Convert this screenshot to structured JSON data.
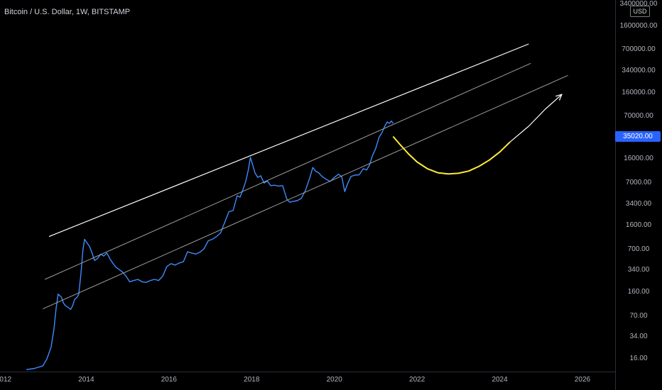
{
  "header": {
    "title": "Bitcoin / U.S. Dollar, 1W, BITSTAMP",
    "currency_button": "USD"
  },
  "price_badge": {
    "label": "35020.00",
    "color": "#2962ff"
  },
  "colors": {
    "price_line": "#3d8bfd",
    "channel_top": "#ffffff",
    "channel_mid": "#9e9e9e",
    "channel_low": "#9e9e9e",
    "projection": "#ffeb3b",
    "projection_arrow": "#ffffff"
  },
  "chart_data": {
    "type": "line",
    "title": "Bitcoin / U.S. Dollar, 1W, BITSTAMP",
    "y_scale": "log",
    "ylim": [
      11,
      4200000
    ],
    "xlim": [
      2012.0,
      2027.0
    ],
    "x_ticks": [
      "2012",
      "2014",
      "2016",
      "2018",
      "2020",
      "2022",
      "2024",
      "2026"
    ],
    "x_tick_values": [
      2012,
      2014,
      2016,
      2018,
      2020,
      2022,
      2024,
      2026
    ],
    "y_tick_labels": [
      "3400000.00",
      "1600000.00",
      "700000.00",
      "340000.00",
      "160000.00",
      "70000.00",
      "35020.00",
      "16000.00",
      "7000.00",
      "3400.00",
      "1600.00",
      "700.00",
      "340.00",
      "160.00",
      "70.00",
      "34.00",
      "16.00"
    ],
    "y_tick_values": [
      3400000,
      1600000,
      700000,
      340000,
      160000,
      70000,
      35020,
      16000,
      7000,
      3400,
      1600,
      700,
      340,
      160,
      70,
      34,
      16
    ],
    "series": [
      {
        "x": [
          2012.55,
          2012.75,
          2012.95,
          2013.05,
          2013.15,
          2013.22,
          2013.27,
          2013.32,
          2013.4,
          2013.45,
          2013.5,
          2013.56,
          2013.62,
          2013.67,
          2013.72,
          2013.78,
          2013.82,
          2013.87,
          2013.92,
          2013.96,
          2014.02,
          2014.08,
          2014.13,
          2014.2,
          2014.28,
          2014.35,
          2014.42,
          2014.5,
          2014.58,
          2014.65,
          2014.72,
          2014.8,
          2014.88,
          2014.96,
          2015.05,
          2015.15,
          2015.25,
          2015.35,
          2015.45,
          2015.55,
          2015.65,
          2015.75,
          2015.85,
          2015.95,
          2016.05,
          2016.15,
          2016.25,
          2016.35,
          2016.45,
          2016.55,
          2016.65,
          2016.75,
          2016.85,
          2016.95,
          2017.05,
          2017.15,
          2017.25,
          2017.35,
          2017.45,
          2017.55,
          2017.65,
          2017.72,
          2017.8,
          2017.86,
          2017.92,
          2017.97,
          2018.02,
          2018.08,
          2018.15,
          2018.22,
          2018.3,
          2018.38,
          2018.46,
          2018.55,
          2018.65,
          2018.75,
          2018.85,
          2018.92,
          2019.0,
          2019.1,
          2019.2,
          2019.3,
          2019.4,
          2019.48,
          2019.55,
          2019.62,
          2019.7,
          2019.8,
          2019.9,
          2020.0,
          2020.1,
          2020.18,
          2020.25,
          2020.32,
          2020.4,
          2020.5,
          2020.6,
          2020.7,
          2020.78,
          2020.85,
          2020.92,
          2021.0,
          2021.08,
          2021.15,
          2021.22,
          2021.28,
          2021.33,
          2021.38,
          2021.42
        ],
        "values": [
          11,
          11.5,
          12.5,
          16,
          24,
          45,
          90,
          150,
          135,
          110,
          100,
          95,
          88,
          100,
          125,
          135,
          150,
          300,
          700,
          1000,
          880,
          780,
          650,
          480,
          520,
          600,
          560,
          620,
          500,
          430,
          380,
          350,
          320,
          280,
          230,
          240,
          250,
          230,
          225,
          240,
          250,
          240,
          280,
          390,
          430,
          410,
          440,
          460,
          650,
          620,
          600,
          640,
          720,
          950,
          1000,
          1100,
          1250,
          1800,
          2600,
          2700,
          4500,
          4300,
          5800,
          7500,
          11000,
          17000,
          13500,
          10000,
          8500,
          9000,
          7000,
          7500,
          6400,
          6500,
          6300,
          6400,
          4000,
          3600,
          3700,
          3800,
          4100,
          5400,
          8200,
          12000,
          10500,
          10000,
          8800,
          8000,
          7400,
          8500,
          9500,
          8700,
          5200,
          6800,
          8800,
          9200,
          9300,
          11500,
          11000,
          13000,
          18000,
          23000,
          34000,
          40000,
          50000,
          58000,
          55000,
          60000,
          55000
        ]
      },
      {
        "x": [
          2013.1,
          2024.7
        ],
        "values": [
          1100,
          860000
        ]
      },
      {
        "x": [
          2013.0,
          2024.75
        ],
        "values": [
          250,
          440000
        ]
      },
      {
        "x": [
          2012.95,
          2025.65
        ],
        "values": [
          90,
          290000
        ]
      },
      {
        "x": [
          2021.42,
          2021.6,
          2021.8,
          2022.0,
          2022.25,
          2022.5,
          2022.75,
          2023.0,
          2023.25,
          2023.5,
          2023.75,
          2024.0,
          2024.25
        ],
        "values": [
          35000,
          26000,
          19000,
          14500,
          11500,
          10000,
          9600,
          9800,
          10600,
          12500,
          15500,
          20500,
          29000
        ]
      },
      {
        "x": [
          2024.25,
          2024.7,
          2025.1,
          2025.5
        ],
        "values": [
          29000,
          50000,
          90000,
          150000
        ]
      }
    ]
  }
}
